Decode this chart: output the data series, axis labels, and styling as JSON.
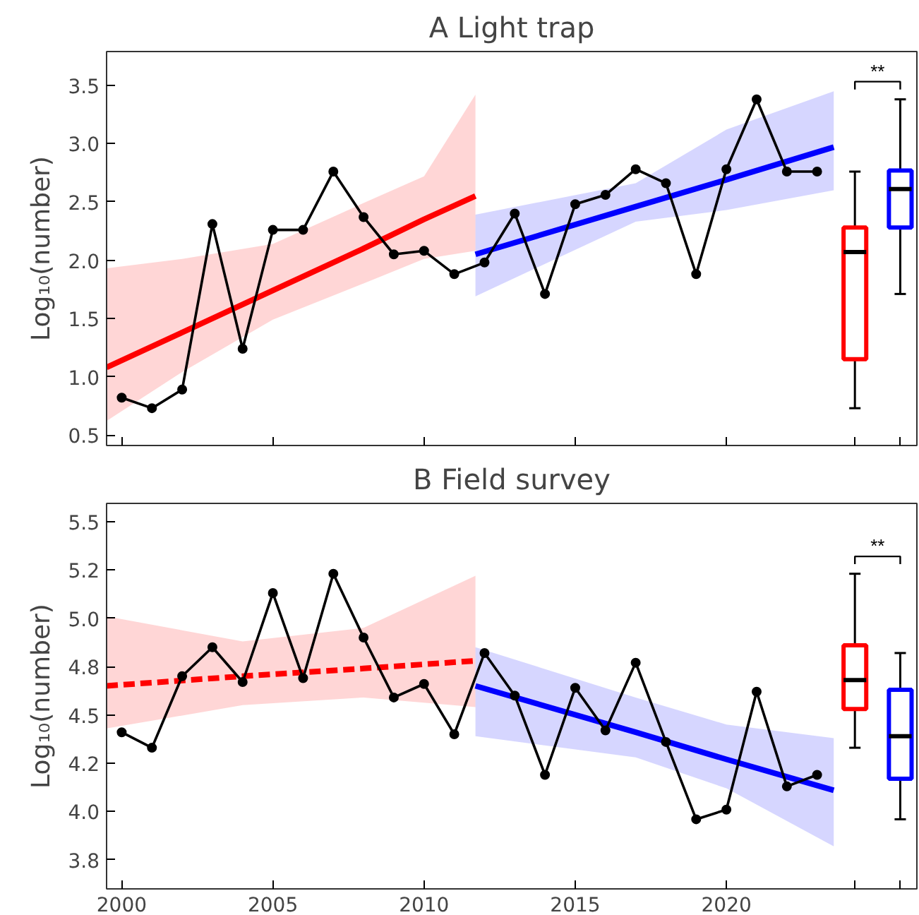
{
  "chart_data": [
    {
      "type": "line",
      "title": "A Light trap",
      "ylabel": "Log₁₀(number)",
      "xlim": [
        1999.5,
        2026.3
      ],
      "ylim": [
        0.41,
        3.79
      ],
      "xticks": [
        2000,
        2005,
        2010,
        2015,
        2020
      ],
      "yticks": [
        {
          "value": 0.5,
          "label": "0.5"
        },
        {
          "value": 1,
          "label": "1.0"
        },
        {
          "value": 1.5,
          "label": "1.5"
        },
        {
          "value": 2,
          "label": "2.0"
        },
        {
          "value": 2.5,
          "label": "2.5"
        },
        {
          "value": 3,
          "label": "3.0"
        },
        {
          "value": 3.5,
          "label": "3.5"
        }
      ],
      "tick_labels": "y",
      "annotations": [
        "**"
      ],
      "series": [
        {
          "color": "#ff0000",
          "x": [
            1999.5,
            2002,
            2005,
            2008,
            2010,
            2011.7
          ],
          "values": [
            1.08,
            1.38,
            1.74,
            2.1,
            2.35,
            2.55
          ],
          "lower": [
            0.62,
            1.04,
            1.49,
            1.8,
            2.01,
            2.08
          ],
          "upper": [
            1.93,
            2.01,
            2.14,
            2.49,
            2.72,
            3.42
          ]
        },
        {
          "color": "#0000ff",
          "x": [
            2011.7,
            2017,
            2020,
            2023.55
          ],
          "values": [
            2.05,
            2.46,
            2.69,
            2.97
          ],
          "lower": [
            1.69,
            2.33,
            2.43,
            2.6
          ],
          "upper": [
            2.39,
            2.66,
            3.12,
            3.45
          ]
        },
        {
          "color": "#000000",
          "marker": "circle",
          "x": [
            2000,
            2001,
            2002,
            2003,
            2004,
            2005,
            2006,
            2007,
            2008,
            2009,
            2010,
            2011,
            2012,
            2013,
            2014,
            2015,
            2016,
            2017,
            2018,
            2019,
            2020,
            2021,
            2022,
            2023
          ],
          "values": [
            0.82,
            0.73,
            0.89,
            2.31,
            1.24,
            2.26,
            2.26,
            2.76,
            2.37,
            2.05,
            2.08,
            1.88,
            1.98,
            2.4,
            1.71,
            2.48,
            2.56,
            2.78,
            2.66,
            1.88,
            2.78,
            3.38,
            2.76,
            2.76
          ]
        },
        {
          "type": "box",
          "color": "#ff0000",
          "x": [
            2024.25
          ],
          "boxes": [
            {
              "low": 0.73,
              "q1": 1.15,
              "median": 2.07,
              "q3": 2.28,
              "high": 2.76
            }
          ]
        },
        {
          "type": "box",
          "color": "#0000ff",
          "x": [
            2025.75
          ],
          "boxes": [
            {
              "low": 1.71,
              "q1": 2.28,
              "median": 2.61,
              "q3": 2.77,
              "high": 3.38
            }
          ]
        }
      ]
    },
    {
      "type": "line",
      "title": "B Field survey",
      "ylabel": "Log₁₀(number)",
      "xlim": [
        1999.5,
        2026.3
      ],
      "ylim": [
        3.6,
        5.594
      ],
      "xticks": [
        2000,
        2005,
        2010,
        2015,
        2020
      ],
      "yticks": [
        {
          "value": 3.75,
          "label": "3.8"
        },
        {
          "value": 4,
          "label": "4.0"
        },
        {
          "value": 4.25,
          "label": "4.2"
        },
        {
          "value": 4.5,
          "label": "4.5"
        },
        {
          "value": 4.75,
          "label": "4.8"
        },
        {
          "value": 5,
          "label": "5.0"
        },
        {
          "value": 5.25,
          "label": "5.2"
        },
        {
          "value": 5.5,
          "label": "5.5"
        }
      ],
      "annotations": [
        "**"
      ],
      "series": [
        {
          "color": "#ff0000",
          "line_style": "dashed",
          "x": [
            1999.5,
            2004,
            2008,
            2011.7
          ],
          "values": [
            4.65,
            4.7,
            4.74,
            4.78
          ],
          "lower": [
            4.43,
            4.55,
            4.59,
            4.54
          ],
          "upper": [
            5.01,
            4.88,
            4.95,
            5.22
          ]
        },
        {
          "color": "#0000ff",
          "x": [
            2011.7,
            2017,
            2020,
            2023.55
          ],
          "values": [
            4.65,
            4.41,
            4.27,
            4.11
          ],
          "lower": [
            4.39,
            4.28,
            4.12,
            3.82
          ],
          "upper": [
            4.85,
            4.59,
            4.45,
            4.38
          ]
        },
        {
          "color": "#000000",
          "marker": "circle",
          "x": [
            2000,
            2001,
            2002,
            2003,
            2004,
            2005,
            2006,
            2007,
            2008,
            2009,
            2010,
            2011,
            2012,
            2013,
            2014,
            2015,
            2016,
            2017,
            2018,
            2019,
            2020,
            2021,
            2022,
            2023
          ],
          "values": [
            4.41,
            4.33,
            4.7,
            4.85,
            4.67,
            5.13,
            4.69,
            5.23,
            4.9,
            4.59,
            4.66,
            4.4,
            4.82,
            4.6,
            4.19,
            4.64,
            4.42,
            4.77,
            4.36,
            3.96,
            4.01,
            4.62,
            4.13,
            4.19
          ]
        },
        {
          "type": "box",
          "color": "#ff0000",
          "x": [
            2024.25
          ],
          "boxes": [
            {
              "low": 4.33,
              "q1": 4.53,
              "median": 4.68,
              "q3": 4.86,
              "high": 5.23
            }
          ]
        },
        {
          "type": "box",
          "color": "#0000ff",
          "x": [
            2025.75
          ],
          "boxes": [
            {
              "low": 3.96,
              "q1": 4.17,
              "median": 4.39,
              "q3": 4.63,
              "high": 4.82
            }
          ]
        }
      ]
    }
  ]
}
